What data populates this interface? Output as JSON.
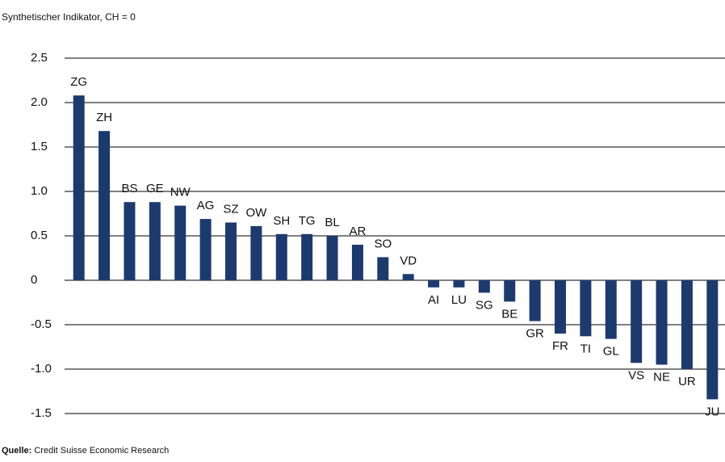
{
  "chart_data": {
    "type": "bar",
    "subtitle": "Synthetischer Indikator, CH = 0",
    "source_label": "Quelle:",
    "source": "Credit Suisse Economic Research",
    "categories": [
      "ZG",
      "ZH",
      "BS",
      "GE",
      "NW",
      "AG",
      "SZ",
      "OW",
      "SH",
      "TG",
      "BL",
      "AR",
      "SO",
      "VD",
      "AI",
      "LU",
      "SG",
      "BE",
      "GR",
      "FR",
      "TI",
      "GL",
      "VS",
      "NE",
      "UR",
      "JU"
    ],
    "values": [
      2.08,
      1.68,
      0.88,
      0.88,
      0.84,
      0.69,
      0.65,
      0.61,
      0.52,
      0.52,
      0.5,
      0.4,
      0.26,
      0.07,
      -0.08,
      -0.08,
      -0.14,
      -0.24,
      -0.46,
      -0.6,
      -0.63,
      -0.66,
      -0.93,
      -0.95,
      -1.0,
      -1.34
    ],
    "color": "#1d3a6e",
    "ylim": [
      -1.5,
      2.5
    ],
    "yticks": [
      {
        "value": 2.5,
        "label": "2.5"
      },
      {
        "value": 2,
        "label": "2.0"
      },
      {
        "value": 1.5,
        "label": "1.5"
      },
      {
        "value": 1,
        "label": "1.0"
      },
      {
        "value": 0.5,
        "label": "0.5"
      },
      0,
      {
        "value": -0.5,
        "label": "-0.5"
      },
      {
        "value": -1,
        "label": "-1.0"
      },
      {
        "value": -1.5,
        "label": "-1.5"
      }
    ],
    "grid": true
  }
}
